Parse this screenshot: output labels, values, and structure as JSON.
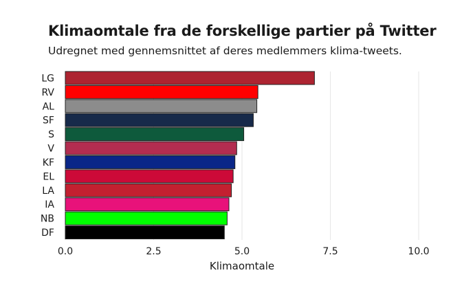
{
  "chart_data": {
    "type": "bar",
    "orientation": "horizontal",
    "title": "Klimaomtale fra de forskellige partier på Twitter",
    "subtitle": "Udregnet med gennemsnittet af deres medlemmers klima-tweets.",
    "xlabel": "Klimaomtale",
    "ylabel": "",
    "xlim": [
      0,
      10
    ],
    "xticks": [
      "0.0",
      "2.5",
      "5.0",
      "7.5",
      "10.0"
    ],
    "grid": "vertical",
    "categories": [
      "LG",
      "RV",
      "AL",
      "SF",
      "S",
      "V",
      "KF",
      "EL",
      "LA",
      "IA",
      "NB",
      "DF"
    ],
    "values": [
      7.05,
      5.45,
      5.42,
      5.32,
      5.05,
      4.85,
      4.8,
      4.75,
      4.7,
      4.63,
      4.58,
      4.5
    ],
    "colors": [
      "#ad2431",
      "#ff0000",
      "#8c8c8c",
      "#172a4a",
      "#0e5a3c",
      "#b32d50",
      "#0a2688",
      "#cc0a38",
      "#c32030",
      "#e8127a",
      "#00ff00",
      "#000000"
    ]
  }
}
